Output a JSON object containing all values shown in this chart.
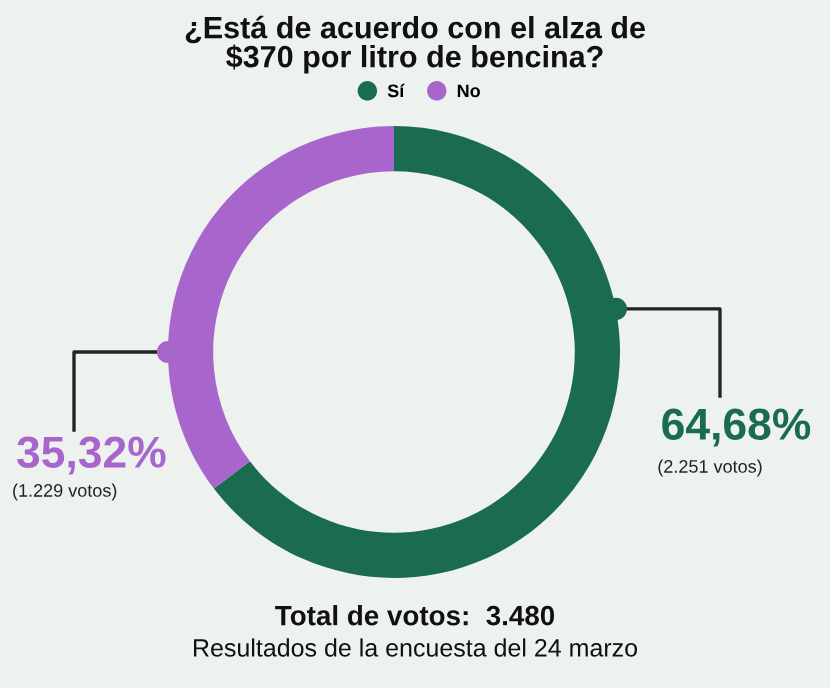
{
  "chart_data": {
    "type": "donut",
    "title": "¿Está de acuerdo con el alza de\n$370 por litro de bencina?",
    "categories": [
      "Sí",
      "No"
    ],
    "values": [
      64.68,
      35.32
    ],
    "colors": [
      "#1a6b52",
      "#a866cc"
    ],
    "value_labels": [
      "64,68%",
      "35,32%"
    ],
    "legend": "top",
    "annotations": [
      "(2.251 votos)",
      "(1.229 votos)",
      "Total de votos:  3.480",
      "Resultados de la encuesta del 24 marzo"
    ]
  }
}
